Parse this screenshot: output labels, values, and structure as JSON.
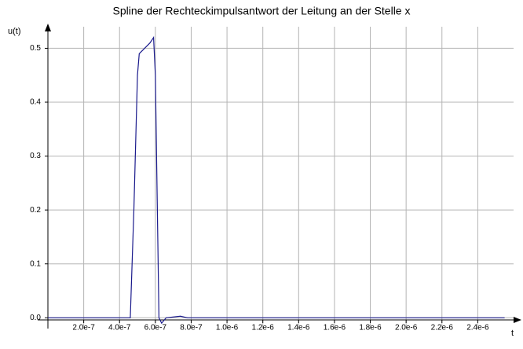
{
  "chart_data": {
    "type": "line",
    "title": "Spline der Rechteckimpulsantwort der Leitung an der Stelle x",
    "ylabel": "u(t)",
    "xlabel": "t",
    "x": [
      0,
      4.6e-07,
      4.8e-07,
      5e-07,
      5.1e-07,
      5.4e-07,
      5.7e-07,
      5.9e-07,
      6e-07,
      6.2e-07,
      6.35e-07,
      6.6e-07,
      7.4e-07,
      7.8e-07,
      8.2e-07,
      1e-06,
      2.55e-06
    ],
    "values": [
      0,
      0,
      0.2,
      0.45,
      0.49,
      0.5,
      0.51,
      0.52,
      0.45,
      0,
      -0.01,
      0,
      0.003,
      0,
      0,
      0,
      0
    ],
    "color": "#1a1a8c",
    "xlim": [
      0,
      2.6e-06
    ],
    "ylim": [
      -0.02,
      0.54
    ],
    "xticks": [
      {
        "value": 2e-07,
        "label": "2.0e-7"
      },
      {
        "value": 4e-07,
        "label": "4.0e-7"
      },
      {
        "value": 6e-07,
        "label": "6.0e-7"
      },
      {
        "value": 8e-07,
        "label": "8.0e-7"
      },
      {
        "value": 1e-06,
        "label": "1.0e-6"
      },
      {
        "value": 1.2e-06,
        "label": "1.2e-6"
      },
      {
        "value": 1.4e-06,
        "label": "1.4e-6"
      },
      {
        "value": 1.6e-06,
        "label": "1.6e-6"
      },
      {
        "value": 1.8e-06,
        "label": "1.8e-6"
      },
      {
        "value": 2e-06,
        "label": "2.0e-6"
      },
      {
        "value": 2.2e-06,
        "label": "2.2e-6"
      },
      {
        "value": 2.4e-06,
        "label": "2.4e-6"
      }
    ],
    "yticks": [
      {
        "value": 0,
        "label": "0.0"
      },
      0.1,
      0.2,
      0.3,
      0.4,
      0.5
    ],
    "grid": true
  }
}
